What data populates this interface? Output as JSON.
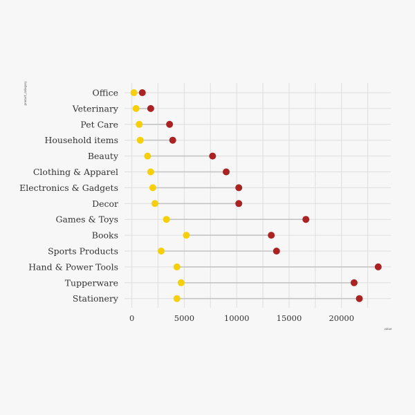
{
  "chart_data": {
    "type": "dumbbell",
    "ylabel": "product_category",
    "xlabel": "value",
    "xlim": [
      -700,
      24700
    ],
    "xticks": [
      0,
      5000,
      10000,
      15000,
      20000
    ],
    "grid": true,
    "colors": {
      "low": "#f5cf0a",
      "high": "#aa2222",
      "segment": "#c4c4c4",
      "grid": "#dedede",
      "background": "#f7f7f7"
    },
    "categories": [
      "Office",
      "Veterinary",
      "Pet Care",
      "Household items",
      "Beauty",
      "Clothing & Apparel",
      "Electronics & Gadgets",
      "Decor",
      "Games & Toys",
      "Books",
      "Sports Products",
      "Hand & Power Tools",
      "Tupperware",
      "Stationery"
    ],
    "series": [
      {
        "values": [
          200,
          400,
          700,
          800,
          1500,
          1800,
          2000,
          2200,
          3300,
          5200,
          2800,
          4300,
          4700,
          4300
        ]
      },
      {
        "values": [
          1000,
          1800,
          3600,
          3900,
          7700,
          9000,
          10200,
          10200,
          16600,
          13300,
          13800,
          23500,
          21200,
          21700
        ]
      }
    ]
  }
}
